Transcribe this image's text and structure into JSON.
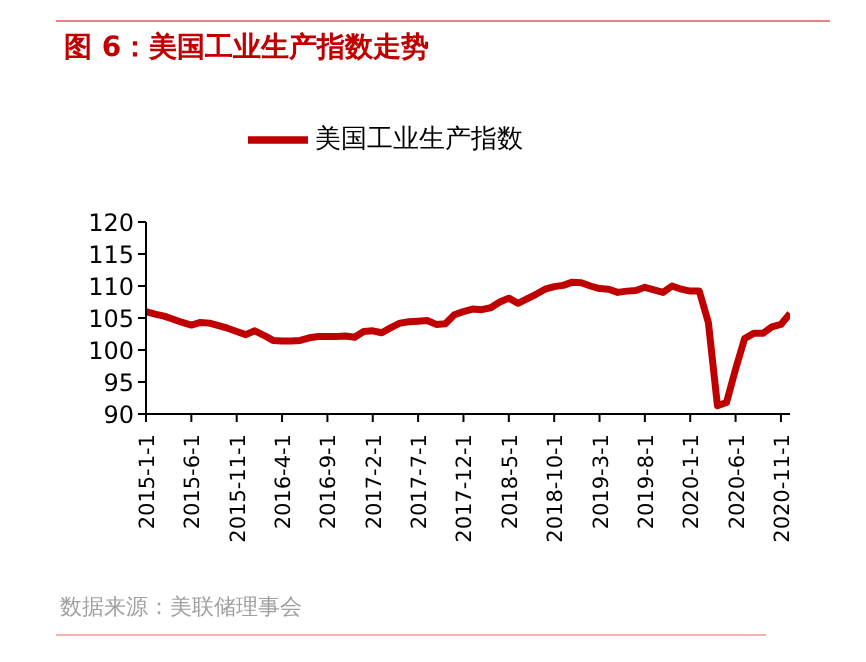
{
  "chart_data": {
    "type": "line",
    "title": "图 6：美国工业生产指数走势",
    "categories": [
      "2015-1-1",
      null,
      null,
      null,
      null,
      "2015-6-1",
      null,
      null,
      null,
      null,
      "2015-11-1",
      null,
      null,
      null,
      null,
      "2016-4-1",
      null,
      null,
      null,
      null,
      "2016-9-1",
      null,
      null,
      null,
      null,
      "2017-2-1",
      null,
      null,
      null,
      null,
      "2017-7-1",
      null,
      null,
      null,
      null,
      "2017-12-1",
      null,
      null,
      null,
      null,
      "2018-5-1",
      null,
      null,
      null,
      null,
      "2018-10-1",
      null,
      null,
      null,
      null,
      "2019-3-1",
      null,
      null,
      null,
      null,
      "2019-8-1",
      null,
      null,
      null,
      null,
      "2020-1-1",
      null,
      null,
      null,
      null,
      "2020-6-1",
      null,
      null,
      null,
      null,
      "2020-11-1",
      null
    ],
    "series": [
      {
        "name": "美国工业生产指数",
        "color": "#c00000",
        "values": [
          106.0,
          105.6,
          105.3,
          104.8,
          104.3,
          103.9,
          104.3,
          104.2,
          103.8,
          103.4,
          102.9,
          102.4,
          103.0,
          102.3,
          101.5,
          101.4,
          101.4,
          101.5,
          101.9,
          102.1,
          102.1,
          102.1,
          102.2,
          102.0,
          102.9,
          103.0,
          102.7,
          103.5,
          104.2,
          104.4,
          104.5,
          104.6,
          104.0,
          104.1,
          105.5,
          106.0,
          106.4,
          106.3,
          106.6,
          107.5,
          108.1,
          107.3,
          108.0,
          108.7,
          109.5,
          109.9,
          110.1,
          110.6,
          110.5,
          110.0,
          109.6,
          109.5,
          109.0,
          109.2,
          109.3,
          109.8,
          109.4,
          109.0,
          110.0,
          109.5,
          109.2,
          109.2,
          104.3,
          91.3,
          91.8,
          97.0,
          101.8,
          102.6,
          102.6,
          103.6,
          104.0,
          105.7
        ]
      }
    ],
    "ylim": [
      90,
      120
    ],
    "yticks": [
      90,
      95,
      100,
      105,
      110,
      115,
      120
    ],
    "grid": false,
    "legend": "top",
    "marker": "none",
    "line_style": "solid",
    "annotations": [
      "数据来源：美联储理事会"
    ]
  }
}
